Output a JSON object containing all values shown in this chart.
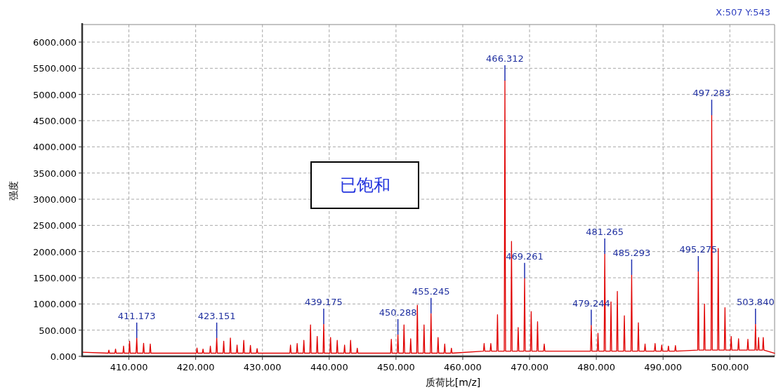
{
  "chart_data": {
    "type": "line",
    "xlabel": "质荷比[m/z]",
    "ylabel": "强度",
    "xlim": [
      403.0,
      506.7
    ],
    "ylim": [
      0,
      6335
    ],
    "xticks": [
      {
        "value": 410,
        "label": "410.000"
      },
      {
        "value": 420,
        "label": "420.000"
      },
      {
        "value": 430,
        "label": "430.000"
      },
      {
        "value": 440,
        "label": "440.000"
      },
      {
        "value": 450,
        "label": "450.000"
      },
      {
        "value": 460,
        "label": "460.000"
      },
      {
        "value": 470,
        "label": "470.000"
      },
      {
        "value": 480,
        "label": "480.000"
      },
      {
        "value": 490,
        "label": "490.000"
      },
      {
        "value": 500,
        "label": "500.000"
      }
    ],
    "yticks": [
      {
        "value": 0,
        "label": "0.000"
      },
      {
        "value": 500,
        "label": "500.000"
      },
      {
        "value": 1000,
        "label": "1000.000"
      },
      {
        "value": 1500,
        "label": "1500.000"
      },
      {
        "value": 2000,
        "label": "2000.000"
      },
      {
        "value": 2500,
        "label": "2500.000"
      },
      {
        "value": 3000,
        "label": "3000.000"
      },
      {
        "value": 3500,
        "label": "3500.000"
      },
      {
        "value": 4000,
        "label": "4000.000"
      },
      {
        "value": 4500,
        "label": "4500.000"
      },
      {
        "value": 5000,
        "label": "5000.000"
      },
      {
        "value": 5500,
        "label": "5500.000"
      },
      {
        "value": 6000,
        "label": "6000.000"
      }
    ],
    "grid": true,
    "series": [
      {
        "color": "#e00000",
        "x": [
          403.0,
          406.9,
          407.0,
          407.1,
          407.9,
          408.0,
          408.1,
          409.1,
          409.2,
          409.3,
          410.0,
          410.1,
          410.2,
          411.07,
          411.173,
          411.27,
          412.1,
          412.2,
          412.3,
          413.1,
          413.2,
          413.3,
          420.1,
          420.2,
          420.3,
          421.0,
          421.1,
          421.2,
          422.1,
          422.2,
          422.3,
          423.05,
          423.151,
          423.25,
          424.1,
          424.2,
          424.3,
          425.1,
          425.2,
          425.3,
          426.1,
          426.2,
          426.3,
          427.1,
          427.2,
          427.3,
          428.1,
          428.2,
          428.3,
          429.1,
          429.2,
          429.3,
          434.1,
          434.2,
          434.3,
          435.1,
          435.2,
          435.3,
          436.1,
          436.2,
          436.3,
          437.1,
          437.2,
          437.3,
          438.1,
          438.2,
          438.3,
          439.08,
          439.175,
          439.27,
          440.1,
          440.2,
          440.3,
          441.1,
          441.2,
          441.3,
          442.2,
          442.3,
          442.4,
          443.1,
          443.2,
          443.3,
          444.1,
          444.2,
          444.3,
          449.2,
          449.3,
          449.4,
          450.19,
          450.288,
          450.39,
          451.1,
          451.2,
          451.3,
          452.1,
          452.2,
          452.3,
          453.1,
          453.2,
          453.3,
          454.1,
          454.2,
          454.3,
          455.15,
          455.245,
          455.35,
          456.2,
          456.3,
          456.4,
          457.2,
          457.3,
          457.4,
          458.2,
          458.3,
          458.4,
          463.1,
          463.2,
          463.3,
          464.1,
          464.2,
          464.3,
          465.1,
          465.2,
          465.3,
          466.21,
          466.312,
          466.41,
          467.2,
          467.3,
          467.4,
          468.2,
          468.3,
          468.4,
          469.16,
          469.261,
          469.36,
          470.15,
          470.25,
          470.35,
          471.1,
          471.2,
          471.3,
          472.1,
          472.2,
          472.3,
          479.14,
          479.244,
          479.34,
          480.15,
          480.25,
          480.35,
          481.17,
          481.265,
          481.37,
          482.1,
          482.2,
          482.3,
          483.05,
          483.15,
          483.25,
          484.1,
          484.2,
          484.3,
          485.19,
          485.293,
          485.39,
          486.2,
          486.3,
          486.4,
          487.2,
          487.3,
          487.4,
          488.7,
          488.8,
          488.9,
          489.7,
          489.8,
          489.9,
          490.7,
          490.8,
          490.9,
          491.75,
          491.85,
          491.95,
          495.18,
          495.275,
          495.37,
          496.1,
          496.2,
          496.3,
          497.18,
          497.283,
          497.38,
          498.16,
          498.26,
          498.36,
          499.17,
          499.27,
          499.37,
          500.1,
          500.2,
          500.3,
          501.2,
          501.3,
          501.4,
          502.6,
          502.7,
          502.8,
          503.74,
          503.84,
          503.94,
          504.2,
          504.3,
          504.4,
          504.9,
          505.0,
          505.1,
          506.7
        ],
        "values": [
          80,
          60,
          120,
          60,
          60,
          140,
          60,
          60,
          195,
          60,
          60,
          290,
          60,
          60,
          350,
          60,
          60,
          250,
          60,
          60,
          235,
          60,
          60,
          160,
          60,
          60,
          140,
          60,
          60,
          195,
          60,
          60,
          350,
          60,
          60,
          290,
          60,
          60,
          350,
          60,
          60,
          215,
          60,
          60,
          305,
          60,
          60,
          210,
          60,
          60,
          150,
          60,
          60,
          215,
          60,
          60,
          245,
          60,
          60,
          305,
          60,
          60,
          600,
          60,
          60,
          380,
          60,
          60,
          615,
          60,
          60,
          360,
          60,
          60,
          305,
          60,
          60,
          215,
          60,
          60,
          305,
          60,
          60,
          155,
          60,
          60,
          325,
          60,
          60,
          415,
          60,
          60,
          600,
          60,
          60,
          335,
          60,
          60,
          975,
          60,
          60,
          600,
          60,
          60,
          820,
          60,
          60,
          360,
          60,
          60,
          235,
          60,
          60,
          155,
          60,
          100,
          245,
          100,
          100,
          245,
          100,
          100,
          795,
          100,
          100,
          5265,
          100,
          100,
          2195,
          100,
          100,
          550,
          100,
          100,
          1490,
          100,
          100,
          855,
          100,
          100,
          660,
          100,
          100,
          235,
          100,
          100,
          595,
          100,
          100,
          440,
          100,
          100,
          1955,
          100,
          100,
          1040,
          100,
          100,
          1240,
          100,
          100,
          775,
          100,
          100,
          1555,
          100,
          100,
          640,
          100,
          100,
          235,
          100,
          100,
          245,
          100,
          100,
          215,
          100,
          100,
          195,
          100,
          100,
          205,
          100,
          120,
          1620,
          120,
          120,
          1000,
          120,
          120,
          4605,
          120,
          120,
          2060,
          120,
          120,
          930,
          120,
          120,
          380,
          120,
          120,
          335,
          120,
          120,
          325,
          120,
          120,
          615,
          120,
          120,
          360,
          120,
          120,
          360,
          120,
          60
        ]
      }
    ],
    "annotations": [
      {
        "text": "411.173",
        "x": 411.173,
        "y": 350
      },
      {
        "text": "423.151",
        "x": 423.151,
        "y": 350
      },
      {
        "text": "439.175",
        "x": 439.175,
        "y": 615
      },
      {
        "text": "450.288",
        "x": 450.288,
        "y": 415
      },
      {
        "text": "455.245",
        "x": 455.245,
        "y": 820
      },
      {
        "text": "466.312",
        "x": 466.312,
        "y": 5265
      },
      {
        "text": "469.261",
        "x": 469.261,
        "y": 1490
      },
      {
        "text": "479.244",
        "x": 479.244,
        "y": 595
      },
      {
        "text": "481.265",
        "x": 481.265,
        "y": 1955
      },
      {
        "text": "485.293",
        "x": 485.293,
        "y": 1555
      },
      {
        "text": "495.275",
        "x": 495.275,
        "y": 1620
      },
      {
        "text": "497.283",
        "x": 497.283,
        "y": 4605
      },
      {
        "text": "503.840",
        "x": 503.84,
        "y": 615
      },
      "已饱和",
      "X:507 Y:543"
    ]
  }
}
